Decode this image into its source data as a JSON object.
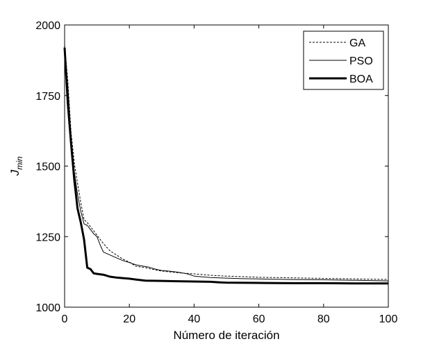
{
  "chart_data": {
    "type": "line",
    "title": "",
    "xlabel": "Número de iteración",
    "ylabel_main": "J",
    "ylabel_sub": "min",
    "xlim": [
      0,
      100
    ],
    "ylim": [
      1000,
      2000
    ],
    "xticks": [
      0,
      20,
      40,
      60,
      80,
      100
    ],
    "xtick_labels": [
      "0",
      "20",
      "40",
      "60",
      "80",
      "100"
    ],
    "yticks": [
      1000,
      1250,
      1500,
      1750,
      2000
    ],
    "ytick_labels": [
      "1000",
      "1250",
      "1500",
      "1750",
      "2000"
    ],
    "grid": false,
    "legend_position": "top-right",
    "series": [
      {
        "name": "GA",
        "style": "dashed-thin",
        "color": "#000000",
        "x": [
          0,
          1,
          2,
          3,
          4,
          5,
          6,
          7,
          8,
          10,
          12,
          14,
          16,
          18,
          20,
          22,
          25,
          28,
          30,
          35,
          40,
          45,
          50,
          55,
          60,
          70,
          80,
          90,
          100
        ],
        "y": [
          1930,
          1800,
          1620,
          1510,
          1440,
          1370,
          1310,
          1300,
          1285,
          1255,
          1225,
          1200,
          1185,
          1170,
          1160,
          1145,
          1140,
          1132,
          1128,
          1122,
          1118,
          1113,
          1110,
          1108,
          1106,
          1104,
          1102,
          1100,
          1098
        ]
      },
      {
        "name": "PSO",
        "style": "solid-thin",
        "color": "#000000",
        "x": [
          0,
          1,
          2,
          3,
          4,
          5,
          6,
          7,
          8,
          9,
          10,
          11,
          12,
          14,
          16,
          18,
          20,
          22,
          24,
          26,
          28,
          30,
          32,
          35,
          38,
          40,
          45,
          50,
          55,
          60,
          70,
          80,
          90,
          100
        ],
        "y": [
          1920,
          1780,
          1600,
          1480,
          1400,
          1340,
          1295,
          1290,
          1275,
          1260,
          1250,
          1220,
          1195,
          1185,
          1175,
          1165,
          1158,
          1150,
          1146,
          1142,
          1135,
          1130,
          1128,
          1124,
          1118,
          1110,
          1105,
          1103,
          1101,
          1100,
          1098,
          1097,
          1095,
          1093
        ]
      },
      {
        "name": "BOA",
        "style": "solid-thick",
        "color": "#000000",
        "x": [
          0,
          1,
          2,
          3,
          4,
          5,
          6,
          7,
          8,
          9,
          10,
          12,
          14,
          16,
          18,
          20,
          22,
          25,
          30,
          35,
          40,
          45,
          48,
          50,
          60,
          70,
          80,
          90,
          100
        ],
        "y": [
          1920,
          1720,
          1580,
          1450,
          1350,
          1300,
          1240,
          1140,
          1135,
          1120,
          1118,
          1115,
          1108,
          1105,
          1103,
          1101,
          1098,
          1094,
          1093,
          1092,
          1091,
          1090,
          1088,
          1087,
          1086,
          1085,
          1085,
          1084,
          1084
        ]
      }
    ]
  }
}
